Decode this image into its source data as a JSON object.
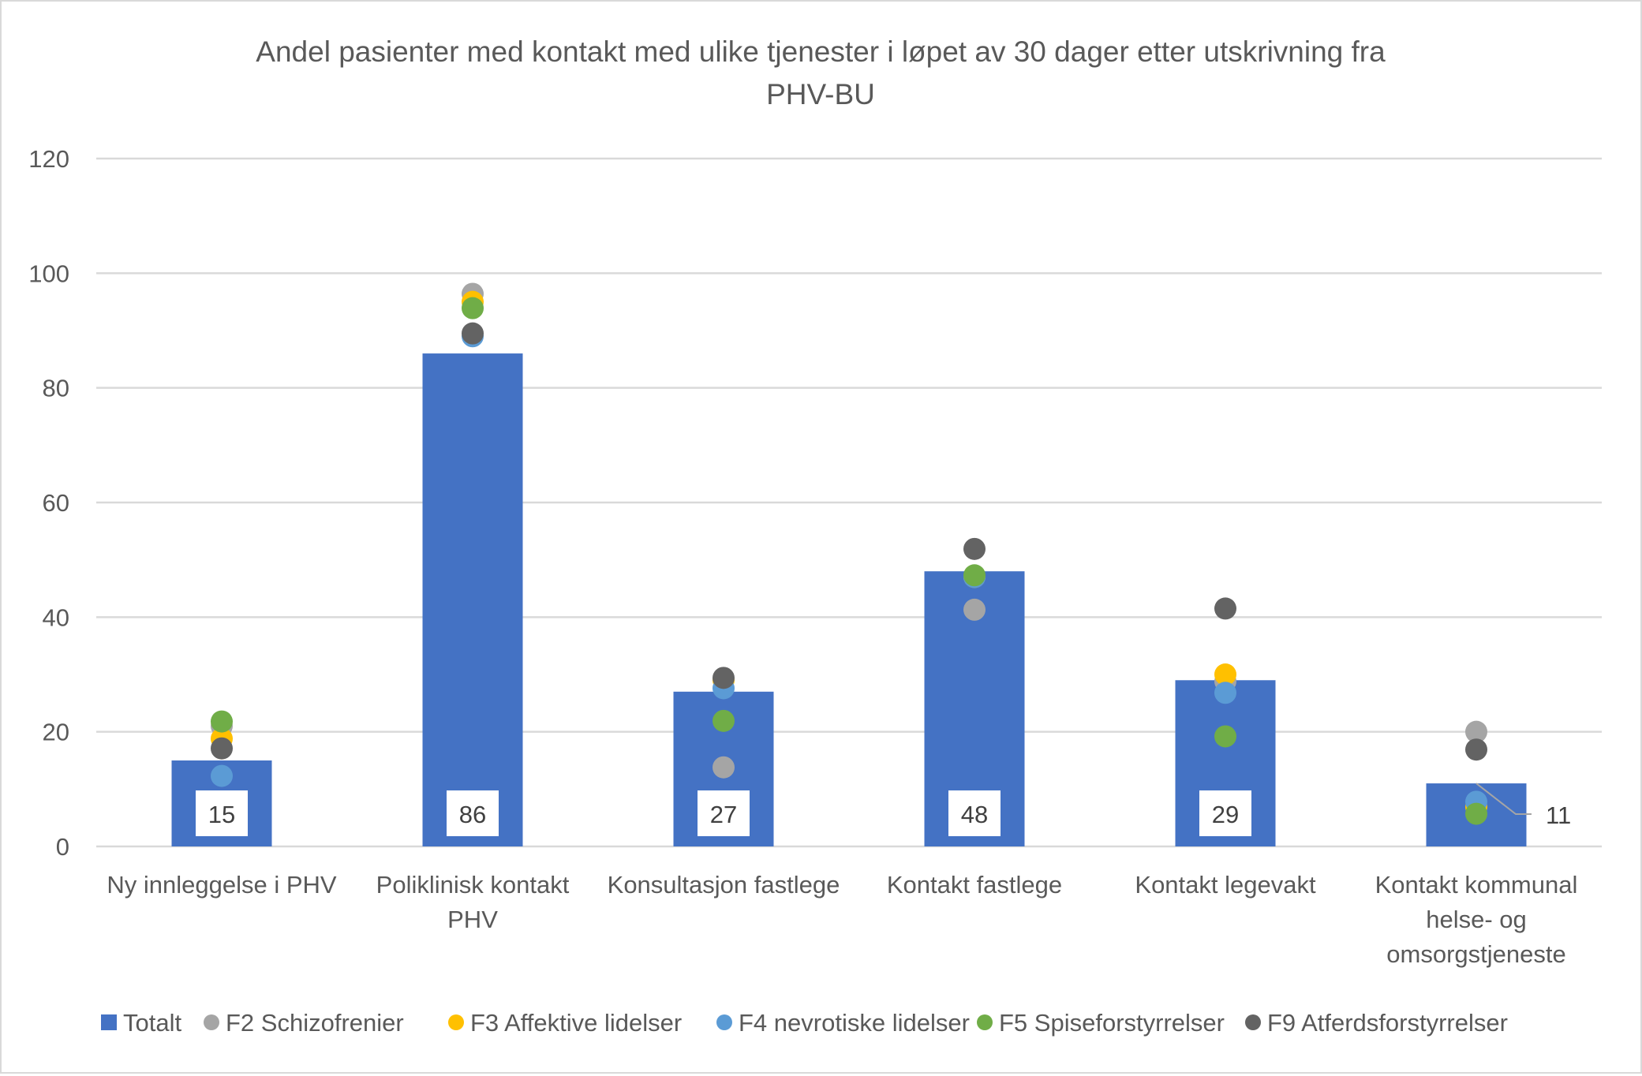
{
  "chart_data": {
    "type": "bar",
    "title": "Andel pasienter med kontakt med ulike tjenester i løpet av 30 dager etter utskrivning fra",
    "title_line2": "PHV-BU",
    "categories": [
      [
        "Ny innleggelse i PHV"
      ],
      [
        "Poliklinisk kontakt",
        "PHV"
      ],
      [
        "Konsultasjon fastlege"
      ],
      [
        "Kontakt fastlege"
      ],
      [
        "Kontakt legevakt"
      ],
      [
        "Kontakt kommunal",
        "helse- og",
        "omsorgstjeneste"
      ]
    ],
    "ylim": [
      0,
      120
    ],
    "yticks": [
      0,
      20,
      40,
      60,
      80,
      100,
      120
    ],
    "grid": true,
    "legend_position": "bottom",
    "bar_series": {
      "name": "Totalt",
      "color": "#4472C4",
      "values": [
        15,
        86,
        27,
        48,
        29,
        11
      ],
      "labels": [
        "15",
        "86",
        "27",
        "48",
        "29",
        "11"
      ]
    },
    "point_series": [
      {
        "name": "F2 Schizofrenier",
        "color": "#A5A5A5",
        "values": [
          21,
          96.4,
          13.8,
          41.3,
          28.8,
          20
        ]
      },
      {
        "name": "F3 Affektive lidelser",
        "color": "#FFC000",
        "values": [
          18.8,
          95,
          29,
          47,
          30,
          6.9
        ]
      },
      {
        "name": "F4 nevrotiske lidelser",
        "color": "#5B9BD5",
        "values": [
          12.3,
          89,
          27.6,
          47,
          26.8,
          7.8
        ]
      },
      {
        "name": "F5 Spiseforstyrrelser",
        "color": "#70AD47",
        "values": [
          21.8,
          93.9,
          21.9,
          47.3,
          19.2,
          5.7
        ]
      },
      {
        "name": "F9 Atferdsforstyrrelser",
        "color": "#636363",
        "values": [
          17.1,
          89.5,
          29.4,
          51.9,
          41.5,
          16.9
        ]
      }
    ]
  }
}
